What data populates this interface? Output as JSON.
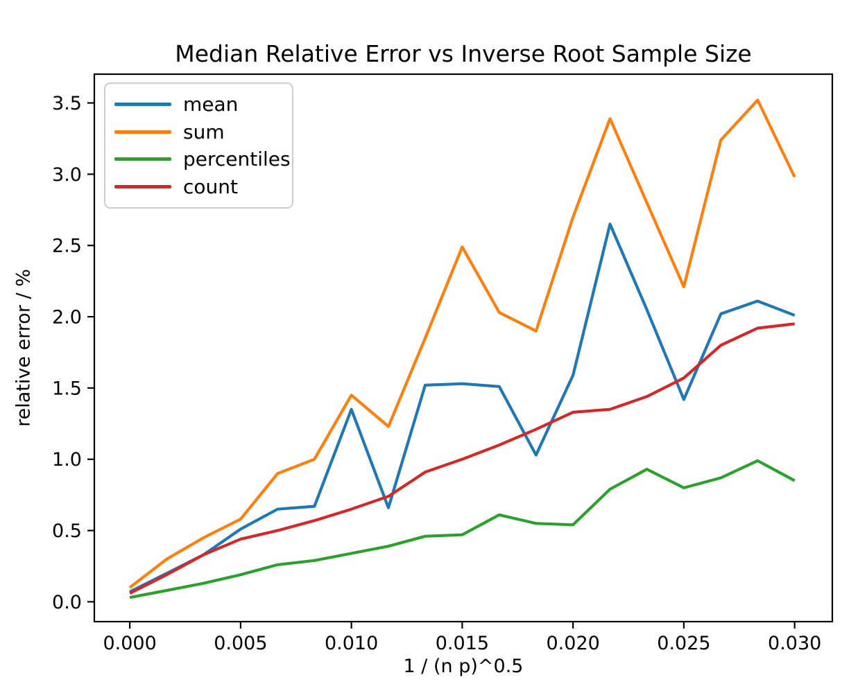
{
  "chart_data": {
    "type": "line",
    "title": "Median Relative Error vs Inverse Root Sample Size",
    "xlabel": "1 / (n p)^0.5",
    "ylabel": "relative error / %",
    "grid": false,
    "legend": {
      "position": "upper left",
      "entries": [
        "mean",
        "sum",
        "percentiles",
        "count"
      ]
    },
    "x": [
      0.0,
      0.00167,
      0.00333,
      0.005,
      0.00667,
      0.00833,
      0.01,
      0.01167,
      0.01333,
      0.015,
      0.01667,
      0.01833,
      0.02,
      0.02167,
      0.02333,
      0.025,
      0.02667,
      0.02833,
      0.03
    ],
    "series": [
      {
        "name": "mean",
        "color": "#1f77b4",
        "values": [
          0.07,
          0.2,
          0.33,
          0.51,
          0.65,
          0.67,
          1.35,
          0.66,
          1.52,
          1.53,
          1.51,
          1.03,
          1.59,
          2.65,
          2.05,
          1.42,
          2.02,
          2.11,
          2.01
        ]
      },
      {
        "name": "sum",
        "color": "#ff7f0e",
        "values": [
          0.1,
          0.3,
          0.45,
          0.58,
          0.9,
          1.0,
          1.45,
          1.23,
          1.85,
          2.49,
          2.03,
          1.9,
          2.7,
          3.39,
          2.8,
          2.21,
          3.24,
          3.52,
          2.98
        ]
      },
      {
        "name": "percentiles",
        "color": "#2ca02c",
        "values": [
          0.03,
          0.08,
          0.13,
          0.19,
          0.26,
          0.29,
          0.34,
          0.39,
          0.46,
          0.47,
          0.61,
          0.55,
          0.54,
          0.79,
          0.93,
          0.8,
          0.87,
          0.99,
          0.85
        ]
      },
      {
        "name": "count",
        "color": "#d62728",
        "values": [
          0.06,
          0.19,
          0.33,
          0.44,
          0.5,
          0.57,
          0.65,
          0.74,
          0.91,
          1.0,
          1.1,
          1.21,
          1.33,
          1.35,
          1.44,
          1.57,
          1.8,
          1.92,
          1.95
        ]
      }
    ],
    "xticks": {
      "values": [
        0.0,
        0.005,
        0.01,
        0.015,
        0.02,
        0.025,
        0.03
      ],
      "labels": [
        "0.000",
        "0.005",
        "0.010",
        "0.015",
        "0.020",
        "0.025",
        "0.030"
      ]
    },
    "yticks": {
      "values": [
        0.0,
        0.5,
        1.0,
        1.5,
        2.0,
        2.5,
        3.0,
        3.5
      ],
      "labels": [
        "0.0",
        "0.5",
        "1.0",
        "1.5",
        "2.0",
        "2.5",
        "3.0",
        "3.5"
      ]
    },
    "xlim": [
      -0.0016,
      0.0317
    ],
    "ylim": [
      -0.139,
      3.702
    ]
  }
}
